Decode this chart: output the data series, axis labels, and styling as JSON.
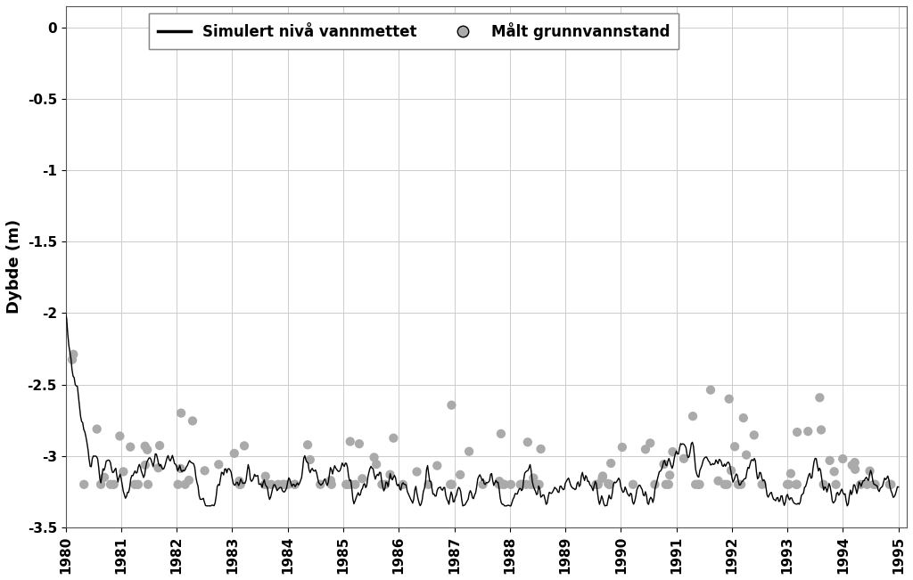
{
  "ylabel": "Dybde (m)",
  "xlim": [
    1980.0,
    1995.15
  ],
  "ylim": [
    -3.5,
    0.15
  ],
  "yticks": [
    0,
    -0.5,
    -1.0,
    -1.5,
    -2.0,
    -2.5,
    -3.0,
    -3.5
  ],
  "xticks": [
    1980,
    1981,
    1982,
    1983,
    1984,
    1985,
    1986,
    1987,
    1988,
    1989,
    1990,
    1991,
    1992,
    1993,
    1994,
    1995
  ],
  "line_color": "#000000",
  "dot_color": "#aaaaaa",
  "legend_line_label": "Simulert nivå vannmettet",
  "legend_dot_label": "Målt grunnvannstand",
  "line_width": 1.0,
  "dot_size": 55,
  "background_color": "#ffffff",
  "grid_color": "#cccccc",
  "tick_fontsize": 11,
  "label_fontsize": 13,
  "legend_fontsize": 12
}
